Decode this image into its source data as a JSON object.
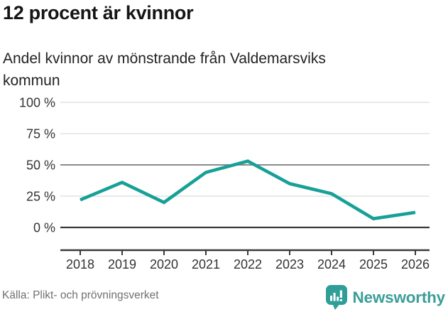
{
  "header": {
    "title": "12 procent är kvinnor",
    "subtitle_lines": [
      "Andel kvinnor av mönstrande från Valdemarsviks",
      "kommun"
    ]
  },
  "chart_data": {
    "type": "line",
    "title": "12 procent är kvinnor",
    "subtitle": "Andel kvinnor av mönstrande från Valdemarsviks kommun",
    "categories": [
      "2018",
      "2019",
      "2020",
      "2021",
      "2022",
      "2023",
      "2024",
      "2025",
      "2026"
    ],
    "series": [
      {
        "name": "Andel kvinnor av mönstrande",
        "values": [
          22,
          36,
          20,
          44,
          53,
          35,
          27,
          7,
          12
        ]
      }
    ],
    "xlabel": "",
    "ylabel": "",
    "ylim": [
      0,
      100
    ],
    "yticks": [
      0,
      25,
      50,
      75,
      100
    ],
    "ytick_labels": [
      "0 %",
      "25 %",
      "50 %",
      "75 %",
      "100 %"
    ],
    "emphasized_gridline": 50,
    "grid": true,
    "legend": false,
    "line_color": "#17a097",
    "gridline_color": "#e2e2e2",
    "emphasized_gridline_color": "#8a8a8a",
    "zero_line_color": "#3a3a3a",
    "axis_color": "#3a3a3a",
    "source": "Källa: Plikt- och prövningsverket"
  },
  "footer": {
    "source": "Källa: Plikt- och prövningsverket",
    "brand": "Newsworthy",
    "brand_color": "#3b9e99",
    "logo_color": "#2f9e97"
  }
}
